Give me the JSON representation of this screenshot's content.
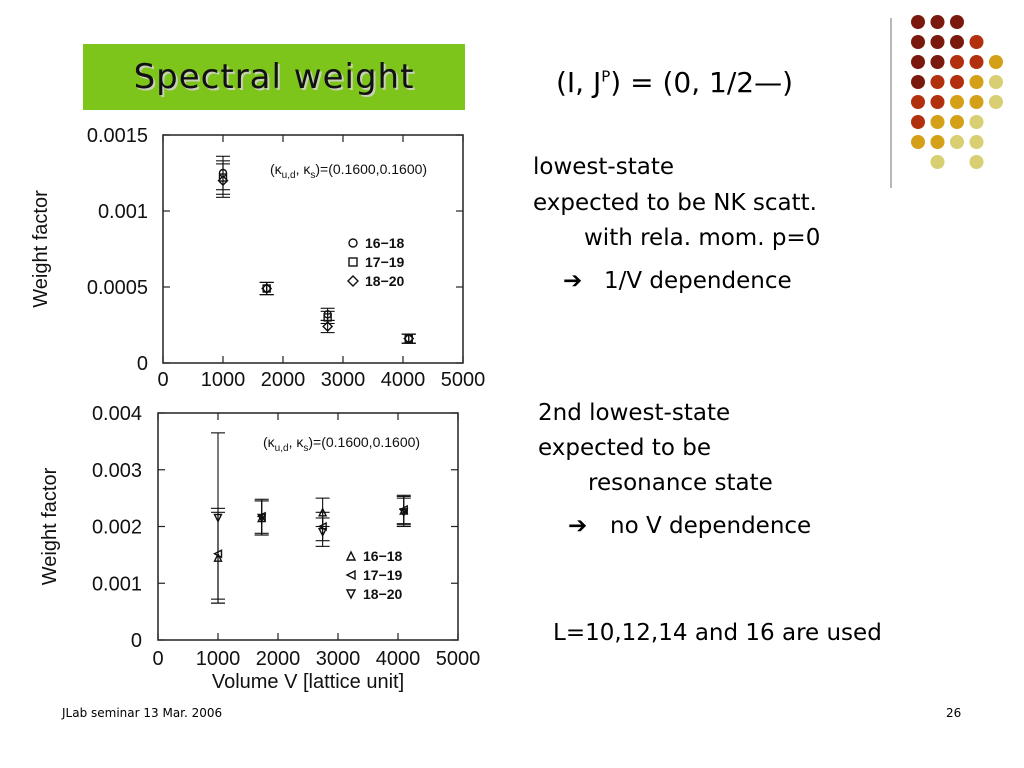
{
  "slide": {
    "title": "Spectral weight",
    "quantum": {
      "prefix": "(I, J",
      "sup": "P",
      "suffix": ") = (0, 1/2—)"
    },
    "note1": {
      "line1": "lowest-state",
      "line2": "expected to be NK scatt.",
      "line3": "with rela. mom. p=0",
      "arrow": "➔",
      "conclusion": "1/V dependence"
    },
    "note2": {
      "line1": "2nd lowest-state",
      "line2": "expected to be",
      "line3": "resonance state",
      "arrow": "➔",
      "conclusion": "no V dependence"
    },
    "note3": "L=10,12,14 and 16 are used",
    "footer_left": "JLab seminar 13 Mar. 2006",
    "footer_right": "26",
    "palette": [
      "#7a1a0e",
      "#b3300f",
      "#d96a12",
      "#d4a017",
      "#d7cf72"
    ]
  },
  "chart_data": [
    {
      "type": "scatter",
      "ylabel": "Weight factor",
      "xlabel": "",
      "annotation": "(κ_u,d, κ_s)=(0.1600,0.1600)",
      "xlim": [
        0,
        5000
      ],
      "ylim": [
        0,
        0.0015
      ],
      "xticks": [
        "0",
        "1000",
        "2000",
        "3000",
        "4000",
        "5000"
      ],
      "yticks": [
        "0",
        "0.0005",
        "0.001",
        "0.0015"
      ],
      "yticks_values": [
        0,
        0.0005,
        0.001,
        0.0015
      ],
      "legend": [
        "16−18",
        "17−19",
        "18−20"
      ],
      "series": [
        {
          "name": "16−18",
          "marker": "circle",
          "points": [
            {
              "x": 1000,
              "y": 0.00125,
              "err": 0.00011
            },
            {
              "x": 1728,
              "y": 0.00049,
              "err": 4e-05
            },
            {
              "x": 2744,
              "y": 0.00032,
              "err": 4e-05
            },
            {
              "x": 4096,
              "y": 0.00016,
              "err": 3e-05
            }
          ]
        },
        {
          "name": "17−19",
          "marker": "square",
          "points": [
            {
              "x": 1000,
              "y": 0.00122,
              "err": 0.00011
            },
            {
              "x": 1728,
              "y": 0.00049,
              "err": 4e-05
            },
            {
              "x": 2744,
              "y": 0.0003,
              "err": 4e-05
            },
            {
              "x": 4096,
              "y": 0.00016,
              "err": 3e-05
            }
          ]
        },
        {
          "name": "18−20",
          "marker": "diamond",
          "points": [
            {
              "x": 1000,
              "y": 0.0012,
              "err": 0.00011
            },
            {
              "x": 1728,
              "y": 0.00049,
              "err": 4e-05
            },
            {
              "x": 2744,
              "y": 0.00024,
              "err": 4e-05
            },
            {
              "x": 4096,
              "y": 0.00016,
              "err": 3e-05
            }
          ]
        }
      ]
    },
    {
      "type": "scatter",
      "ylabel": "Weight factor",
      "xlabel": "Volume V [lattice unit]",
      "annotation": "(κ_u,d, κ_s)=(0.1600,0.1600)",
      "xlim": [
        0,
        5000
      ],
      "ylim": [
        0,
        0.004
      ],
      "xticks": [
        "0",
        "1000",
        "2000",
        "3000",
        "4000",
        "5000"
      ],
      "yticks": [
        "0",
        "0.001",
        "0.002",
        "0.003",
        "0.004"
      ],
      "yticks_values": [
        0,
        0.001,
        0.002,
        0.003,
        0.004
      ],
      "legend": [
        "16−18",
        "17−19",
        "18−20"
      ],
      "series": [
        {
          "name": "16−18",
          "marker": "triangle-up",
          "points": [
            {
              "x": 1000,
              "y": 0.00145,
              "err": 0.0008
            },
            {
              "x": 1728,
              "y": 0.00215,
              "err": 0.0003
            },
            {
              "x": 2744,
              "y": 0.00225,
              "err": 0.00025
            },
            {
              "x": 4096,
              "y": 0.00228,
              "err": 0.00025
            }
          ]
        },
        {
          "name": "17−19",
          "marker": "triangle-left",
          "points": [
            {
              "x": 1000,
              "y": 0.00152,
              "err": 0.0008
            },
            {
              "x": 1728,
              "y": 0.00218,
              "err": 0.0003
            },
            {
              "x": 2744,
              "y": 0.002,
              "err": 0.00025
            },
            {
              "x": 4096,
              "y": 0.0023,
              "err": 0.00025
            }
          ]
        },
        {
          "name": "18−20",
          "marker": "triangle-down",
          "points": [
            {
              "x": 1000,
              "y": 0.00215,
              "err": 0.0015
            },
            {
              "x": 1728,
              "y": 0.00215,
              "err": 0.0003
            },
            {
              "x": 2744,
              "y": 0.0019,
              "err": 0.00025
            },
            {
              "x": 4096,
              "y": 0.00225,
              "err": 0.00025
            }
          ]
        }
      ]
    }
  ]
}
